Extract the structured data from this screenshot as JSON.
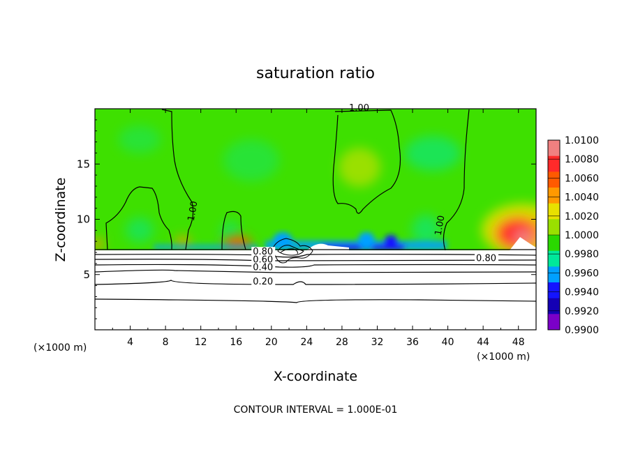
{
  "chart_data": {
    "type": "heatmap",
    "title": "saturation ratio",
    "xlabel": "X-coordinate",
    "ylabel": "Z-coordinate",
    "x_unit_label_left": "(×1000 m)",
    "x_unit_label_right": "(×1000 m)",
    "xlim": [
      0,
      50
    ],
    "ylim": [
      0,
      20
    ],
    "x_ticks": [
      4,
      8,
      12,
      16,
      20,
      24,
      28,
      32,
      36,
      40,
      44,
      48
    ],
    "y_ticks": [
      5,
      10,
      15
    ],
    "footer": "CONTOUR INTERVAL = 1.000E-01",
    "colorbar": {
      "levels": [
        "1.0100",
        "1.0080",
        "1.0060",
        "1.0040",
        "1.0020",
        "1.0000",
        "0.9980",
        "0.9960",
        "0.9940",
        "0.9920",
        "0.9900"
      ],
      "colors": [
        "#f08080",
        "#ff2a2a",
        "#ff5a00",
        "#ff9900",
        "#e8e000",
        "#9ae000",
        "#2ad800",
        "#00e89a",
        "#00a0ff",
        "#1414ff",
        "#1400b4",
        "#7b00c8"
      ]
    },
    "contour_labels": [
      {
        "text": "1.00",
        "x": 28.8,
        "z": 19.8
      },
      {
        "text": "1.00",
        "x": 11.2,
        "z": 9.8
      },
      {
        "text": "1.00",
        "x": 39.2,
        "z": 8.5
      },
      {
        "text": "0.80",
        "x": 17.9,
        "z": 6.8
      },
      {
        "text": "0.60",
        "x": 17.9,
        "z": 6.1
      },
      {
        "text": "0.40",
        "x": 17.9,
        "z": 5.4
      },
      {
        "text": "0.20",
        "x": 17.9,
        "z": 4.1
      },
      {
        "text": "0.80",
        "x": 43.2,
        "z": 6.2
      }
    ],
    "legend": "colorbar right"
  }
}
